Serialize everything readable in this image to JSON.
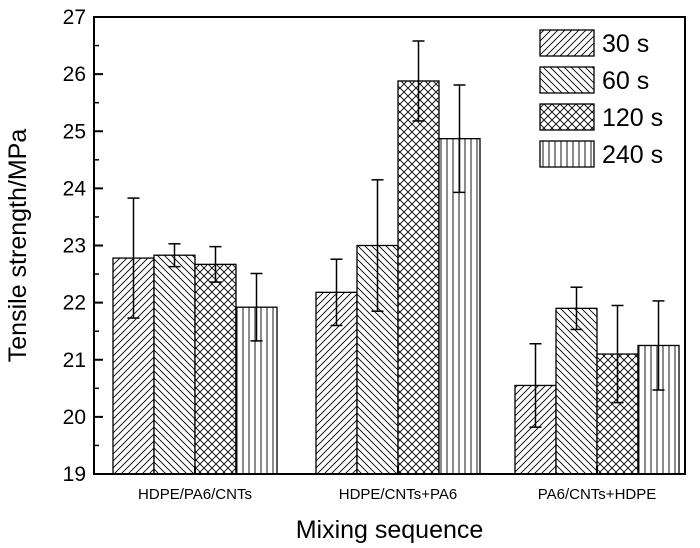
{
  "chart_data": {
    "type": "bar",
    "title": "",
    "xlabel": "Mixing sequence",
    "ylabel": "Tensile strength/MPa",
    "ylim": [
      19,
      27
    ],
    "yticks": [
      19,
      20,
      21,
      22,
      23,
      24,
      25,
      26,
      27
    ],
    "categories": [
      "HDPE/PA6/CNTs",
      "HDPE/CNTs+PA6",
      "PA6/CNTs+HDPE"
    ],
    "legend_position": "top-right",
    "series": [
      {
        "name": "30 s",
        "pattern": "diagonal-right",
        "values": [
          22.78,
          22.18,
          20.55
        ],
        "errors": [
          1.05,
          0.58,
          0.73
        ]
      },
      {
        "name": "60 s",
        "pattern": "diagonal-left",
        "values": [
          22.83,
          23.0,
          21.9
        ],
        "errors": [
          0.2,
          1.15,
          0.37
        ]
      },
      {
        "name": "120 s",
        "pattern": "crosshatch",
        "values": [
          22.67,
          25.88,
          21.1
        ],
        "errors": [
          0.31,
          0.7,
          0.85
        ]
      },
      {
        "name": "240 s",
        "pattern": "vertical",
        "values": [
          21.92,
          24.87,
          21.25
        ],
        "errors": [
          0.59,
          0.94,
          0.78
        ]
      }
    ]
  }
}
